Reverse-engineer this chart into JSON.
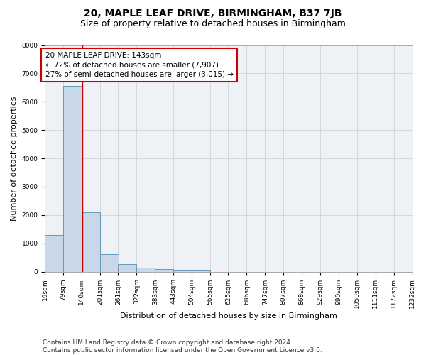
{
  "title_line1": "20, MAPLE LEAF DRIVE, BIRMINGHAM, B37 7JB",
  "title_line2": "Size of property relative to detached houses in Birmingham",
  "xlabel": "Distribution of detached houses by size in Birmingham",
  "ylabel": "Number of detached properties",
  "bar_left_edges": [
    19,
    79,
    140,
    201,
    261,
    322,
    383,
    443,
    504,
    565,
    625,
    686,
    747,
    807,
    868,
    929,
    990,
    1050,
    1111,
    1172
  ],
  "bar_heights": [
    1300,
    6560,
    2095,
    625,
    260,
    130,
    100,
    60,
    60,
    0,
    0,
    0,
    0,
    0,
    0,
    0,
    0,
    0,
    0,
    0
  ],
  "bin_width": 61,
  "bar_color": "#c8d8e8",
  "bar_edge_color": "#6699bb",
  "grid_color": "#cccccc",
  "bg_color": "#eef2f7",
  "property_size": 143,
  "vertical_line_x": 143,
  "vline_color": "#cc0000",
  "annotation_text": "20 MAPLE LEAF DRIVE: 143sqm\n← 72% of detached houses are smaller (7,907)\n27% of semi-detached houses are larger (3,015) →",
  "annotation_box_color": "#cc0000",
  "ylim": [
    0,
    8000
  ],
  "yticks": [
    0,
    1000,
    2000,
    3000,
    4000,
    5000,
    6000,
    7000,
    8000
  ],
  "xtick_labels": [
    "19sqm",
    "79sqm",
    "140sqm",
    "201sqm",
    "261sqm",
    "322sqm",
    "383sqm",
    "443sqm",
    "504sqm",
    "565sqm",
    "625sqm",
    "686sqm",
    "747sqm",
    "807sqm",
    "868sqm",
    "929sqm",
    "990sqm",
    "1050sqm",
    "1111sqm",
    "1172sqm",
    "1232sqm"
  ],
  "footer_text": "Contains HM Land Registry data © Crown copyright and database right 2024.\nContains public sector information licensed under the Open Government Licence v3.0.",
  "title_fontsize": 10,
  "subtitle_fontsize": 9,
  "axis_label_fontsize": 8,
  "tick_fontsize": 6.5,
  "annot_fontsize": 7.5,
  "footer_fontsize": 6.5
}
